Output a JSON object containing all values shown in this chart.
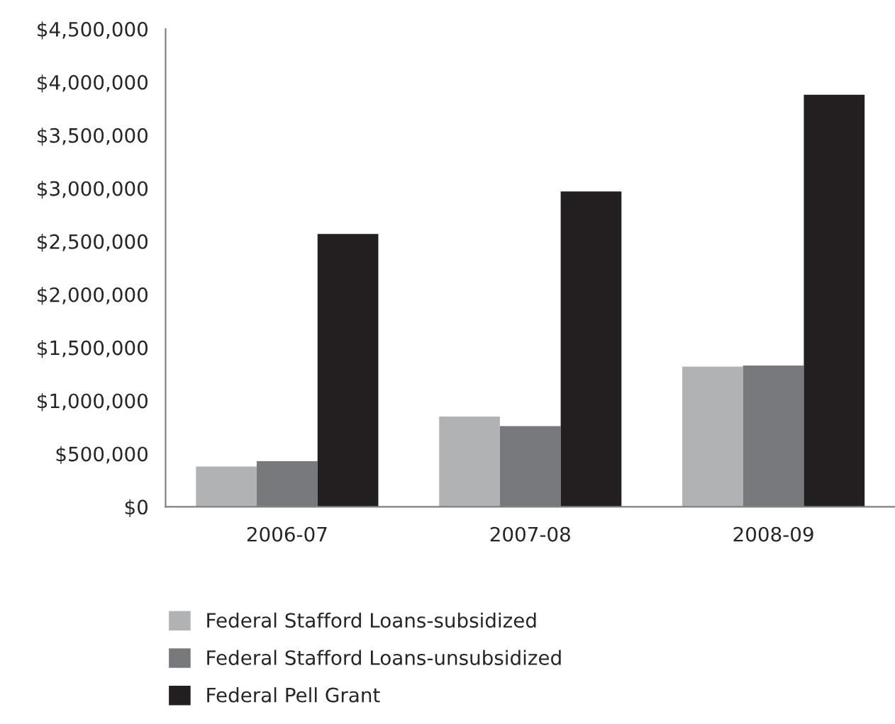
{
  "chart_data": {
    "type": "bar",
    "categories": [
      "2006-07",
      "2007-08",
      "2008-09"
    ],
    "series": [
      {
        "name": "Federal Stafford Loans-subsidized",
        "color": "#b1b2b4",
        "values": [
          380000,
          850000,
          1320000
        ]
      },
      {
        "name": "Federal Stafford Loans-unsubsidized",
        "color": "#78797d",
        "values": [
          430000,
          760000,
          1330000
        ]
      },
      {
        "name": "Federal Pell Grant",
        "color": "#231f20",
        "values": [
          2570000,
          2970000,
          3880000
        ]
      }
    ],
    "ylim": [
      0,
      4500000
    ],
    "yticks": [
      {
        "value": 0,
        "label": "$0"
      },
      {
        "value": 500000,
        "label": "$500,000"
      },
      {
        "value": 1000000,
        "label": "$1,000,000"
      },
      {
        "value": 1500000,
        "label": "$1,500,000"
      },
      {
        "value": 2000000,
        "label": "$2,000,000"
      },
      {
        "value": 2500000,
        "label": "$2,500,000"
      },
      {
        "value": 3000000,
        "label": "$3,000,000"
      },
      {
        "value": 3500000,
        "label": "$3,500,000"
      },
      {
        "value": 4000000,
        "label": "$4,000,000"
      },
      {
        "value": 4500000,
        "label": "$4,500,000"
      }
    ],
    "grid": false,
    "legend": "bottom left"
  }
}
